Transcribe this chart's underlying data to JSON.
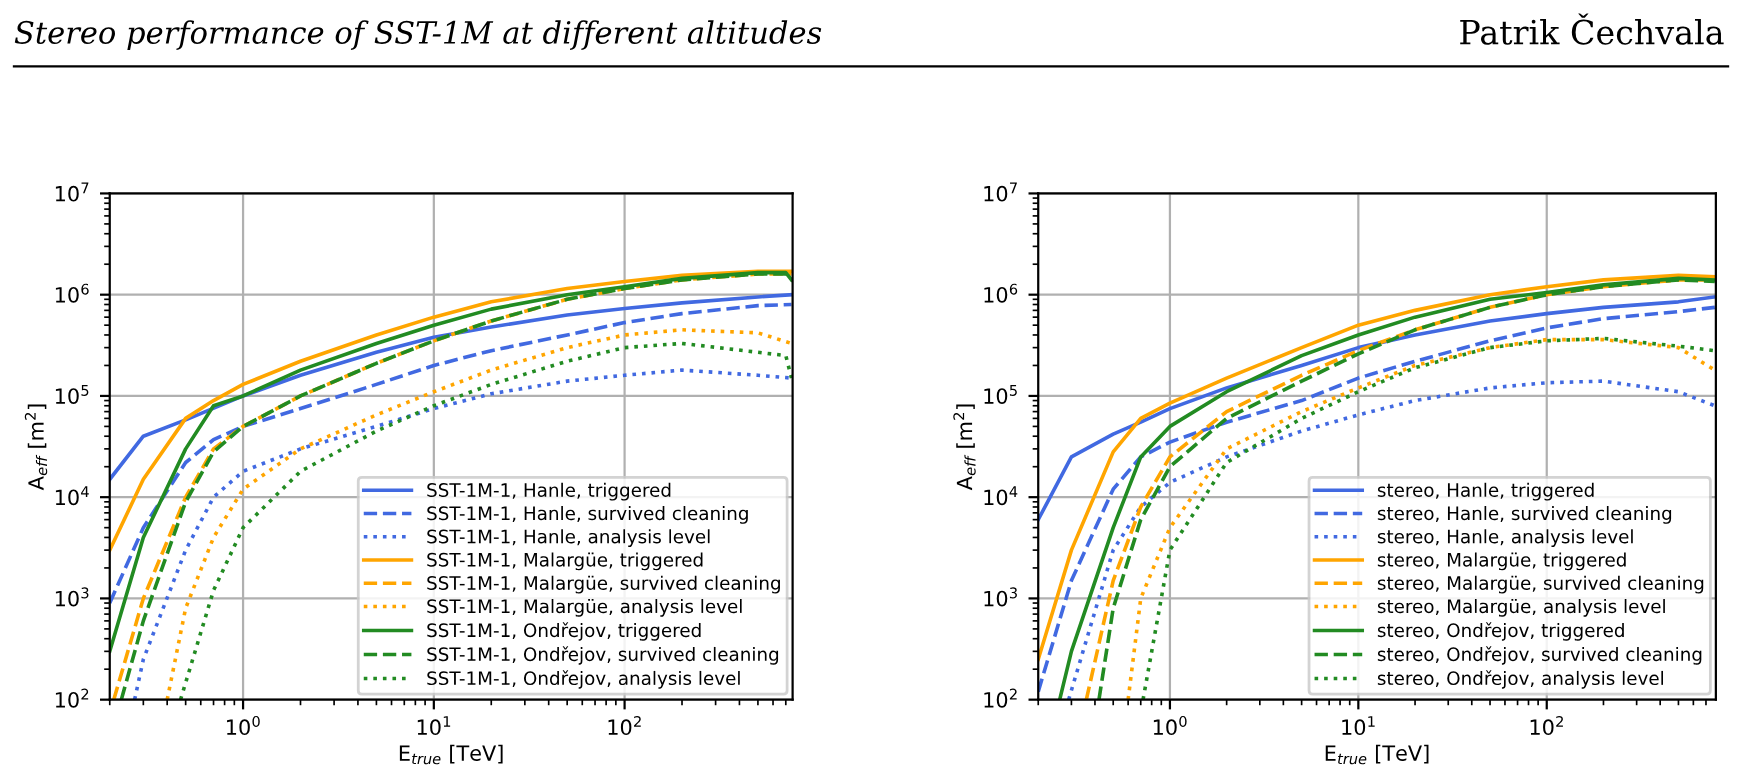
{
  "chart_data": [
    {
      "type": "line",
      "annotations": [
        "Stereo performance of SST-1M at different altitudes",
        "Patrik Čechvala"
      ],
      "xlabel": "E$_{true}$ [TeV]",
      "ylabel": "A$_{eff}$ [m$^{2}$]",
      "log": "xy",
      "grid": true,
      "legend": "bottom right",
      "xlim": [
        0.2,
        760
      ],
      "ylim": [
        100,
        10000000
      ],
      "xticks": [
        {
          "value": 1,
          "label": "10$^{0}$"
        },
        {
          "value": 10,
          "label": "10$^{1}$"
        },
        {
          "value": 100,
          "label": "10$^{2}$"
        }
      ],
      "yticks": [
        {
          "value": 100,
          "label": "10$^{2}$"
        },
        {
          "value": 1000,
          "label": "10$^{3}$"
        },
        {
          "value": 10000,
          "label": "10$^{4}$"
        },
        {
          "value": 100000,
          "label": "10$^{5}$"
        },
        {
          "value": 1000000,
          "label": "10$^{6}$"
        },
        {
          "value": 10000000,
          "label": "10$^{7}$"
        }
      ],
      "series": [
        {
          "name": "SST-1M-1, Hanle, triggered",
          "color": "#4169e1",
          "line_style": "solid",
          "x": [
            0.2,
            0.3,
            0.5,
            1,
            2,
            5,
            10,
            20,
            50,
            100,
            200,
            500,
            750
          ],
          "values": [
            15000,
            40000,
            58000,
            100000,
            160000,
            270000,
            380000,
            480000,
            630000,
            730000,
            830000,
            950000,
            1000000
          ]
        },
        {
          "name": "SST-1M-1, Hanle, survived cleaning",
          "color": "#4169e1",
          "line_style": "dashed",
          "x": [
            0.2,
            0.3,
            0.5,
            0.7,
            1,
            2,
            5,
            10,
            20,
            50,
            100,
            200,
            500,
            750
          ],
          "values": [
            900,
            5000,
            22000,
            37000,
            50000,
            75000,
            130000,
            200000,
            280000,
            400000,
            530000,
            650000,
            780000,
            800000
          ]
        },
        {
          "name": "SST-1M-1, Hanle, analysis level",
          "color": "#4169e1",
          "line_style": "dotted",
          "x": [
            0.27,
            0.3,
            0.5,
            0.7,
            1,
            2,
            5,
            10,
            20,
            50,
            100,
            200,
            500,
            750
          ],
          "values": [
            100,
            250,
            3000,
            10000,
            18000,
            30000,
            50000,
            75000,
            105000,
            140000,
            160000,
            180000,
            160000,
            150000
          ]
        },
        {
          "name": "SST-1M-1, Malargüe, triggered",
          "color": "#ffa500",
          "line_style": "solid",
          "x": [
            0.2,
            0.3,
            0.5,
            0.7,
            1,
            2,
            5,
            10,
            20,
            50,
            100,
            200,
            500,
            750
          ],
          "values": [
            3000,
            15000,
            60000,
            90000,
            130000,
            220000,
            400000,
            600000,
            850000,
            1150000,
            1350000,
            1550000,
            1700000,
            1700000
          ]
        },
        {
          "name": "SST-1M-1, Malargüe, survived cleaning",
          "color": "#ffa500",
          "line_style": "dashed",
          "x": [
            0.21,
            0.3,
            0.5,
            0.7,
            1,
            2,
            5,
            10,
            20,
            50,
            100,
            200,
            500,
            750
          ],
          "values": [
            100,
            1000,
            10000,
            30000,
            50000,
            100000,
            210000,
            350000,
            550000,
            900000,
            1150000,
            1400000,
            1600000,
            1600000
          ]
        },
        {
          "name": "SST-1M-1, Malargüe, analysis level",
          "color": "#ffa500",
          "line_style": "dotted",
          "x": [
            0.4,
            0.5,
            0.7,
            1,
            2,
            5,
            10,
            20,
            50,
            100,
            200,
            500,
            750
          ],
          "values": [
            100,
            800,
            4000,
            12000,
            30000,
            65000,
            110000,
            180000,
            300000,
            400000,
            450000,
            420000,
            330000
          ]
        },
        {
          "name": "SST-1M-1, Ondřejov, triggered",
          "color": "#228b22",
          "line_style": "solid",
          "x": [
            0.2,
            0.3,
            0.5,
            0.7,
            1,
            2,
            5,
            10,
            20,
            50,
            100,
            200,
            500,
            700,
            750
          ],
          "values": [
            300,
            4000,
            30000,
            80000,
            100000,
            180000,
            330000,
            500000,
            720000,
            1000000,
            1200000,
            1450000,
            1650000,
            1650000,
            1400000
          ]
        },
        {
          "name": "SST-1M-1, Ondřejov, survived cleaning",
          "color": "#228b22",
          "line_style": "dashed",
          "x": [
            0.23,
            0.3,
            0.5,
            0.7,
            1,
            2,
            5,
            10,
            20,
            50,
            100,
            200,
            500,
            750
          ],
          "values": [
            100,
            600,
            9000,
            28000,
            50000,
            100000,
            210000,
            350000,
            550000,
            900000,
            1150000,
            1400000,
            1600000,
            1600000
          ]
        },
        {
          "name": "SST-1M-1, Ondřejov, analysis level",
          "color": "#228b22",
          "line_style": "dotted",
          "x": [
            0.47,
            0.7,
            1,
            2,
            5,
            10,
            20,
            50,
            100,
            200,
            500,
            700,
            750
          ],
          "values": [
            100,
            1200,
            5000,
            18000,
            45000,
            80000,
            130000,
            220000,
            300000,
            330000,
            270000,
            250000,
            150000
          ]
        }
      ]
    },
    {
      "type": "line",
      "xlabel": "E$_{true}$ [TeV]",
      "ylabel": "A$_{eff}$ [m$^{2}$]",
      "log": "xy",
      "grid": true,
      "legend": "bottom right",
      "xlim": [
        0.2,
        790
      ],
      "ylim": [
        100,
        10000000
      ],
      "xticks": [
        {
          "value": 1,
          "label": "10$^{0}$"
        },
        {
          "value": 10,
          "label": "10$^{1}$"
        },
        {
          "value": 100,
          "label": "10$^{2}$"
        }
      ],
      "yticks": [
        {
          "value": 100,
          "label": "10$^{2}$"
        },
        {
          "value": 1000,
          "label": "10$^{3}$"
        },
        {
          "value": 10000,
          "label": "10$^{4}$"
        },
        {
          "value": 100000,
          "label": "10$^{5}$"
        },
        {
          "value": 1000000,
          "label": "10$^{6}$"
        },
        {
          "value": 10000000,
          "label": "10$^{7}$"
        }
      ],
      "series": [
        {
          "name": "stereo, Hanle, triggered",
          "color": "#4169e1",
          "line_style": "solid",
          "x": [
            0.2,
            0.3,
            0.5,
            0.7,
            1,
            2,
            5,
            10,
            20,
            50,
            100,
            200,
            500,
            780
          ],
          "values": [
            6000,
            25000,
            42000,
            55000,
            75000,
            120000,
            200000,
            300000,
            400000,
            550000,
            650000,
            750000,
            850000,
            950000
          ]
        },
        {
          "name": "stereo, Hanle, survived cleaning",
          "color": "#4169e1",
          "line_style": "dashed",
          "x": [
            0.2,
            0.3,
            0.5,
            0.7,
            1,
            2,
            5,
            10,
            20,
            50,
            100,
            200,
            500,
            780
          ],
          "values": [
            120,
            1500,
            12000,
            25000,
            35000,
            55000,
            90000,
            150000,
            220000,
            350000,
            470000,
            580000,
            680000,
            750000
          ]
        },
        {
          "name": "stereo, Hanle, analysis level",
          "color": "#4169e1",
          "line_style": "dotted",
          "x": [
            0.29,
            0.5,
            0.7,
            1,
            2,
            5,
            10,
            20,
            50,
            100,
            200,
            500,
            780
          ],
          "values": [
            100,
            3000,
            8000,
            14000,
            25000,
            45000,
            65000,
            90000,
            120000,
            135000,
            140000,
            110000,
            80000
          ]
        },
        {
          "name": "stereo, Malargüe, triggered",
          "color": "#ffa500",
          "line_style": "solid",
          "x": [
            0.2,
            0.3,
            0.5,
            0.7,
            1,
            2,
            5,
            10,
            20,
            50,
            100,
            200,
            500,
            780
          ],
          "values": [
            250,
            3000,
            28000,
            60000,
            85000,
            150000,
            300000,
            500000,
            700000,
            1000000,
            1200000,
            1400000,
            1550000,
            1500000
          ]
        },
        {
          "name": "stereo, Malargüe, survived cleaning",
          "color": "#ffa500",
          "line_style": "dashed",
          "x": [
            0.36,
            0.5,
            0.7,
            1,
            2,
            5,
            10,
            20,
            50,
            100,
            200,
            500,
            780
          ],
          "values": [
            100,
            1500,
            8000,
            25000,
            70000,
            160000,
            280000,
            450000,
            750000,
            1000000,
            1200000,
            1400000,
            1400000
          ]
        },
        {
          "name": "stereo, Malargüe, analysis level",
          "color": "#ffa500",
          "line_style": "dotted",
          "x": [
            0.6,
            0.7,
            1,
            2,
            5,
            10,
            20,
            50,
            100,
            200,
            500,
            780
          ],
          "values": [
            100,
            1000,
            5000,
            30000,
            70000,
            120000,
            200000,
            300000,
            360000,
            360000,
            300000,
            180000
          ]
        },
        {
          "name": "stereo, Ondřejov, triggered",
          "color": "#228b22",
          "line_style": "solid",
          "x": [
            0.26,
            0.3,
            0.5,
            0.7,
            1,
            2,
            5,
            10,
            20,
            50,
            100,
            200,
            500,
            780
          ],
          "values": [
            100,
            300,
            5000,
            25000,
            50000,
            110000,
            250000,
            400000,
            600000,
            900000,
            1050000,
            1250000,
            1450000,
            1400000
          ]
        },
        {
          "name": "stereo, Ondřejov, survived cleaning",
          "color": "#228b22",
          "line_style": "dashed",
          "x": [
            0.42,
            0.5,
            0.7,
            1,
            2,
            5,
            10,
            20,
            50,
            100,
            200,
            500,
            780
          ],
          "values": [
            100,
            800,
            6000,
            20000,
            60000,
            140000,
            260000,
            450000,
            750000,
            1000000,
            1200000,
            1400000,
            1350000
          ]
        },
        {
          "name": "stereo, Ondřejov, analysis level",
          "color": "#228b22",
          "line_style": "dotted",
          "x": [
            0.72,
            1,
            2,
            5,
            10,
            20,
            50,
            100,
            200,
            500,
            780
          ],
          "values": [
            100,
            3000,
            22000,
            60000,
            110000,
            190000,
            300000,
            350000,
            370000,
            310000,
            280000
          ]
        }
      ]
    }
  ]
}
